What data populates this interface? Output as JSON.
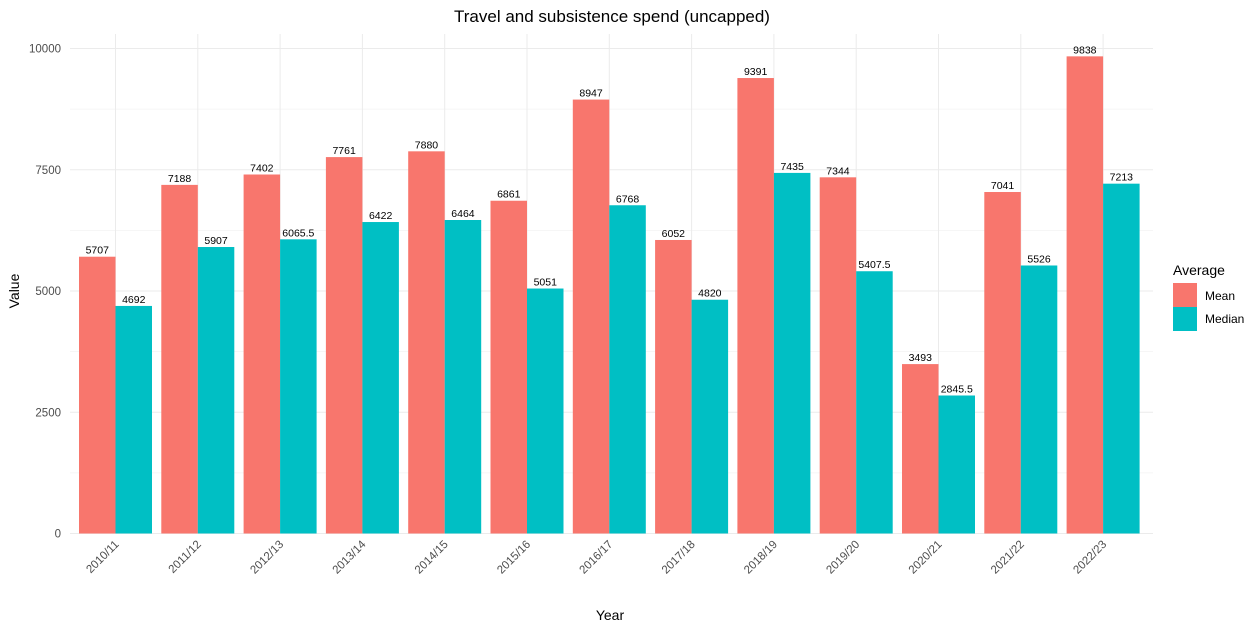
{
  "chart_data": {
    "type": "bar",
    "title": "Travel and subsistence spend (uncapped)",
    "xlabel": "Year",
    "ylabel": "Value",
    "ylim": [
      0,
      10000
    ],
    "yticks": [
      0,
      2500,
      5000,
      7500,
      10000
    ],
    "categories": [
      "2010/11",
      "2011/12",
      "2012/13",
      "2013/14",
      "2014/15",
      "2015/16",
      "2016/17",
      "2017/18",
      "2018/19",
      "2019/20",
      "2020/21",
      "2021/22",
      "2022/23"
    ],
    "series": [
      {
        "name": "Mean",
        "color": "#f8766d",
        "values": [
          5707,
          7188,
          7402,
          7761,
          7880,
          6861,
          8947,
          6052,
          9391,
          7344,
          3493,
          7041,
          9838
        ],
        "labels": [
          "5707",
          "7188",
          "7402",
          "7761",
          "7880",
          "6861",
          "8947",
          "6052",
          "9391",
          "7344",
          "3493",
          "7041",
          "9838"
        ]
      },
      {
        "name": "Median",
        "color": "#00bfc4",
        "values": [
          4692,
          5907,
          6065.5,
          6422,
          6464,
          5051,
          6768,
          4820,
          7435,
          5407.5,
          2845.5,
          5526,
          7213
        ],
        "labels": [
          "4692",
          "5907",
          "6065.5",
          "6422",
          "6464",
          "5051",
          "6768",
          "4820",
          "7435",
          "5407.5",
          "2845.5",
          "5526",
          "7213"
        ]
      }
    ],
    "legend": {
      "title": "Average",
      "position": "right"
    },
    "grid": true
  }
}
